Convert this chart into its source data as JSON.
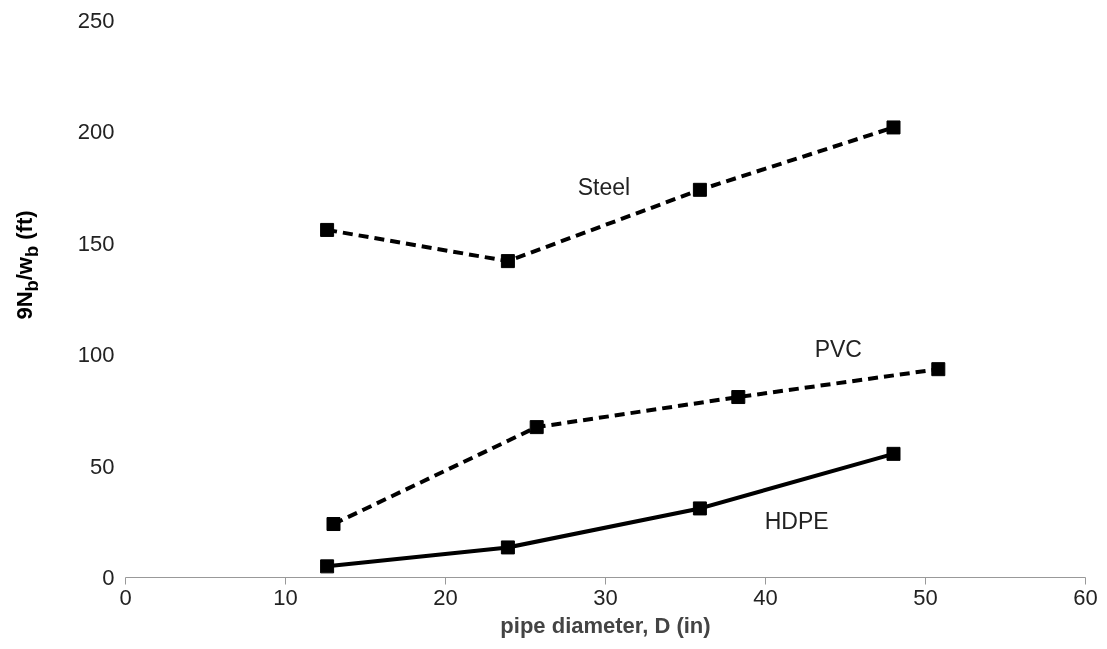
{
  "chart_data": {
    "type": "line",
    "xlabel": "pipe diameter, D (in)",
    "ylabel": "9N$_{b}$/w$_{b}$ (ft)",
    "xlim": [
      0,
      60
    ],
    "xticks": [
      0,
      10,
      20,
      30,
      40,
      50,
      60
    ],
    "ylim": [
      0,
      250
    ],
    "yticks": [
      0,
      50,
      100,
      150,
      200,
      250
    ],
    "grid": false,
    "legend": false,
    "marker": "square",
    "series": [
      {
        "name": "Steel",
        "color": "#000000",
        "line_style": "dashed",
        "x": [
          12.6,
          23.9,
          35.9,
          48.0
        ],
        "values": [
          156,
          142,
          174,
          202
        ]
      },
      {
        "name": "PVC",
        "color": "#000000",
        "line_style": "dashed",
        "x": [
          13.0,
          25.7,
          38.3,
          50.8
        ],
        "values": [
          24,
          67.5,
          81,
          93.5
        ]
      },
      {
        "name": "HDPE",
        "color": "#000000",
        "line_style": "solid",
        "x": [
          12.6,
          23.9,
          35.9,
          48.0
        ],
        "values": [
          5,
          13.5,
          31,
          55.5
        ]
      }
    ]
  }
}
